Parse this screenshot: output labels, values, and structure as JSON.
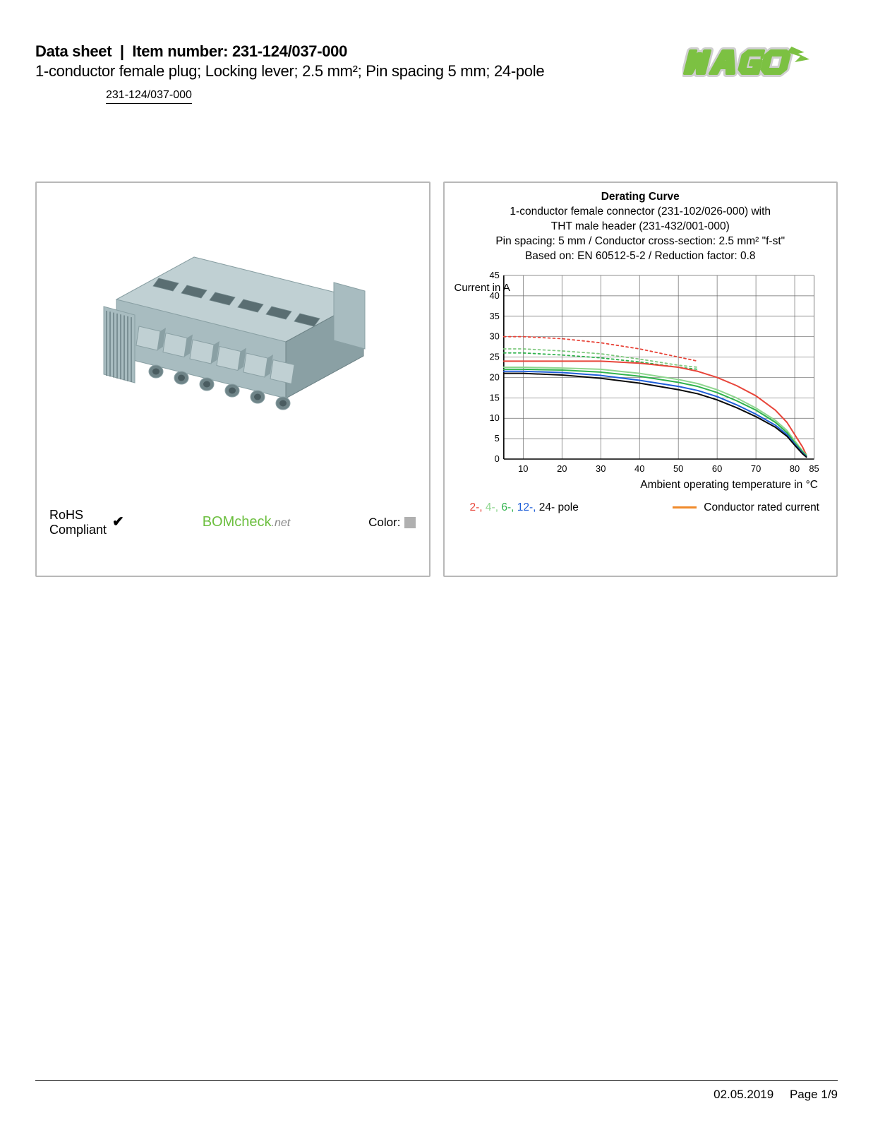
{
  "header": {
    "datasheet_label": "Data sheet",
    "item_label": "Item number:",
    "item_number": "231-124/037-000",
    "description": "1-conductor female plug; Locking lever; 2.5 mm²; Pin spacing 5 mm; 24-pole",
    "part_link": "231-124/037-000"
  },
  "logo": {
    "text": "WAGO",
    "green": "#7cc142",
    "gray": "#cfcfcf"
  },
  "product_panel": {
    "rohs_line1": "RoHS",
    "rohs_line2": "Compliant",
    "check": "✔",
    "bomcheck_main": "BOMcheck",
    "bomcheck_suffix": ".net",
    "color_label": "Color:",
    "color_swatch": "#b0b0b0",
    "connector_color": "#a8bcc0"
  },
  "chart": {
    "type": "line",
    "title": "Derating Curve",
    "sub1": "1-conductor female connector (231-102/026-000) with",
    "sub2": "THT male header (231-432/001-000)",
    "sub3": "Pin spacing: 5 mm / Conductor cross-section: 2.5 mm² \"f-st\"",
    "sub4": "Based on: EN 60512-5-2 / Reduction factor: 0.8",
    "ylabel": "Current in A",
    "xlabel": "Ambient operating temperature in °C",
    "ylim": [
      0,
      45
    ],
    "ytick_step": 5,
    "xlim": [
      5,
      85
    ],
    "xticks": [
      10,
      20,
      30,
      40,
      50,
      60,
      70,
      80,
      85
    ],
    "background_color": "#ffffff",
    "grid_color": "#6a6a6a",
    "axis_color": "#000000",
    "line_width": 2,
    "dash_width": 1.8,
    "series": [
      {
        "name": "2-pole-dash",
        "color": "#e8453a",
        "dash": true,
        "points": [
          [
            5,
            30
          ],
          [
            10,
            30
          ],
          [
            20,
            29.5
          ],
          [
            30,
            28.5
          ],
          [
            40,
            27
          ],
          [
            50,
            25
          ],
          [
            55,
            24
          ]
        ]
      },
      {
        "name": "4-pole-dash",
        "color": "#7fc97f",
        "dash": true,
        "points": [
          [
            5,
            27
          ],
          [
            10,
            27
          ],
          [
            20,
            26.5
          ],
          [
            30,
            25.8
          ],
          [
            40,
            24.5
          ],
          [
            50,
            23
          ],
          [
            55,
            22.5
          ]
        ]
      },
      {
        "name": "6-pole-dash",
        "color": "#2fb24c",
        "dash": true,
        "points": [
          [
            5,
            26
          ],
          [
            10,
            26
          ],
          [
            20,
            25.5
          ],
          [
            30,
            24.8
          ],
          [
            40,
            23.8
          ],
          [
            50,
            22.5
          ],
          [
            55,
            22
          ]
        ]
      },
      {
        "name": "2-pole",
        "color": "#e8453a",
        "dash": false,
        "points": [
          [
            5,
            24
          ],
          [
            10,
            24
          ],
          [
            20,
            24
          ],
          [
            30,
            24
          ],
          [
            40,
            23.5
          ],
          [
            50,
            22.5
          ],
          [
            55,
            21.5
          ],
          [
            60,
            20
          ],
          [
            65,
            18
          ],
          [
            70,
            15.5
          ],
          [
            75,
            12
          ],
          [
            78,
            9
          ],
          [
            80,
            6
          ],
          [
            82,
            3
          ],
          [
            83,
            1
          ]
        ]
      },
      {
        "name": "4-pole",
        "color": "#8fd68f",
        "dash": false,
        "points": [
          [
            5,
            22.5
          ],
          [
            10,
            22.5
          ],
          [
            20,
            22.3
          ],
          [
            30,
            22
          ],
          [
            40,
            21
          ],
          [
            50,
            19.5
          ],
          [
            55,
            18.5
          ],
          [
            60,
            17
          ],
          [
            65,
            15
          ],
          [
            70,
            12.5
          ],
          [
            75,
            9.5
          ],
          [
            78,
            7
          ],
          [
            80,
            4.5
          ],
          [
            82,
            2
          ],
          [
            83,
            1
          ]
        ]
      },
      {
        "name": "6-pole",
        "color": "#2fb24c",
        "dash": false,
        "points": [
          [
            5,
            22
          ],
          [
            10,
            22
          ],
          [
            20,
            21.8
          ],
          [
            30,
            21.3
          ],
          [
            40,
            20.3
          ],
          [
            50,
            18.8
          ],
          [
            55,
            17.8
          ],
          [
            60,
            16.3
          ],
          [
            65,
            14.3
          ],
          [
            70,
            12
          ],
          [
            75,
            9
          ],
          [
            78,
            6.5
          ],
          [
            80,
            4
          ],
          [
            82,
            1.8
          ],
          [
            83,
            0.8
          ]
        ]
      },
      {
        "name": "12-pole",
        "color": "#1f5fd8",
        "dash": false,
        "points": [
          [
            5,
            21.5
          ],
          [
            10,
            21.5
          ],
          [
            20,
            21.2
          ],
          [
            30,
            20.5
          ],
          [
            40,
            19.3
          ],
          [
            50,
            17.8
          ],
          [
            55,
            16.8
          ],
          [
            60,
            15.3
          ],
          [
            65,
            13.3
          ],
          [
            70,
            11
          ],
          [
            75,
            8.3
          ],
          [
            78,
            6
          ],
          [
            80,
            3.7
          ],
          [
            82,
            1.5
          ],
          [
            83,
            0.6
          ]
        ]
      },
      {
        "name": "24-pole",
        "color": "#0a0a0a",
        "dash": false,
        "points": [
          [
            5,
            21
          ],
          [
            10,
            21
          ],
          [
            20,
            20.6
          ],
          [
            30,
            19.8
          ],
          [
            40,
            18.6
          ],
          [
            50,
            17
          ],
          [
            55,
            16
          ],
          [
            60,
            14.5
          ],
          [
            65,
            12.6
          ],
          [
            70,
            10.4
          ],
          [
            75,
            7.8
          ],
          [
            78,
            5.6
          ],
          [
            80,
            3.4
          ],
          [
            82,
            1.3
          ],
          [
            83,
            0.5
          ]
        ]
      }
    ],
    "legend_poles": [
      {
        "text": "2-",
        "color": "#e8453a"
      },
      {
        "text": "4-",
        "color": "#8fd68f"
      },
      {
        "text": "6-",
        "color": "#2fb24c"
      },
      {
        "text": "12-",
        "color": "#1f5fd8"
      },
      {
        "text": "24-",
        "color": "#0a0a0a"
      },
      {
        "text": "pole",
        "color": "#000000"
      }
    ],
    "legend_rated": {
      "color": "#f08a2b",
      "label": "Conductor rated current"
    }
  },
  "footer": {
    "date": "02.05.2019",
    "page": "Page 1/9"
  }
}
